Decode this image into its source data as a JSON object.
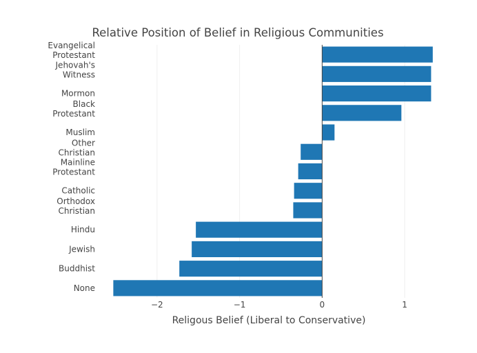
{
  "chart_data": {
    "type": "bar",
    "orientation": "horizontal",
    "title": "Relative Position of Belief in Religious Communities",
    "xlabel": "Religous Belief (Liberal to Conservative)",
    "ylabel": "",
    "xlim": [
      -2.65,
      1.4
    ],
    "xticks": [
      -2,
      -1,
      0,
      1
    ],
    "xtick_labels": [
      "−2",
      "−1",
      "0",
      "1"
    ],
    "grid": true,
    "bar_color": "#1f77b4",
    "categories": [
      [
        "Evangelical",
        "Protestant"
      ],
      [
        "Jehovah's",
        "Witness"
      ],
      [
        "Mormon"
      ],
      [
        "Black",
        "Protestant"
      ],
      [
        "Muslim"
      ],
      [
        "Other",
        "Christian"
      ],
      [
        "Mainline",
        "Protestant"
      ],
      [
        "Catholic"
      ],
      [
        "Orthodox",
        "Christian"
      ],
      [
        "Hindu"
      ],
      [
        "Jewish"
      ],
      [
        "Buddhist"
      ],
      [
        "None"
      ]
    ],
    "values": [
      1.34,
      1.32,
      1.32,
      0.96,
      0.15,
      -0.26,
      -0.29,
      -0.34,
      -0.35,
      -1.53,
      -1.58,
      -1.73,
      -2.53
    ]
  }
}
